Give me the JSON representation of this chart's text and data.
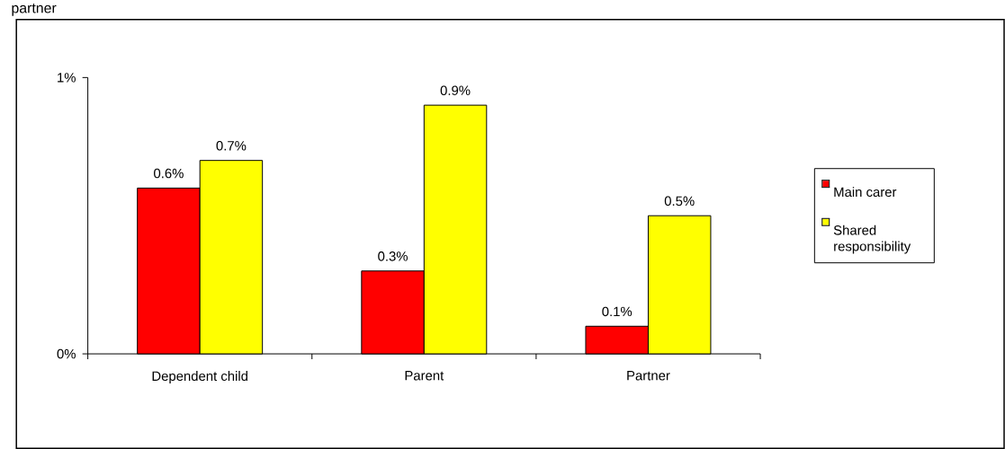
{
  "chart_data": {
    "type": "bar",
    "title": "partner",
    "categories": [
      "Dependent child",
      "Parent",
      "Partner"
    ],
    "series": [
      {
        "name": "Main carer",
        "color": "#ff0000",
        "values": [
          0.6,
          0.3,
          0.1
        ],
        "value_labels": [
          "0.6%",
          "0.3%",
          "0.1%"
        ]
      },
      {
        "name": "Shared responsibility",
        "color": "#ffff00",
        "values": [
          0.7,
          0.9,
          0.5
        ],
        "value_labels": [
          "0.7%",
          "0.9%",
          "0.5%"
        ]
      }
    ],
    "ylim": [
      0,
      1
    ],
    "yticks": [
      {
        "value": 0,
        "label": "0%"
      },
      {
        "value": 1,
        "label": "1%"
      }
    ],
    "grid": false,
    "legend": "right"
  }
}
